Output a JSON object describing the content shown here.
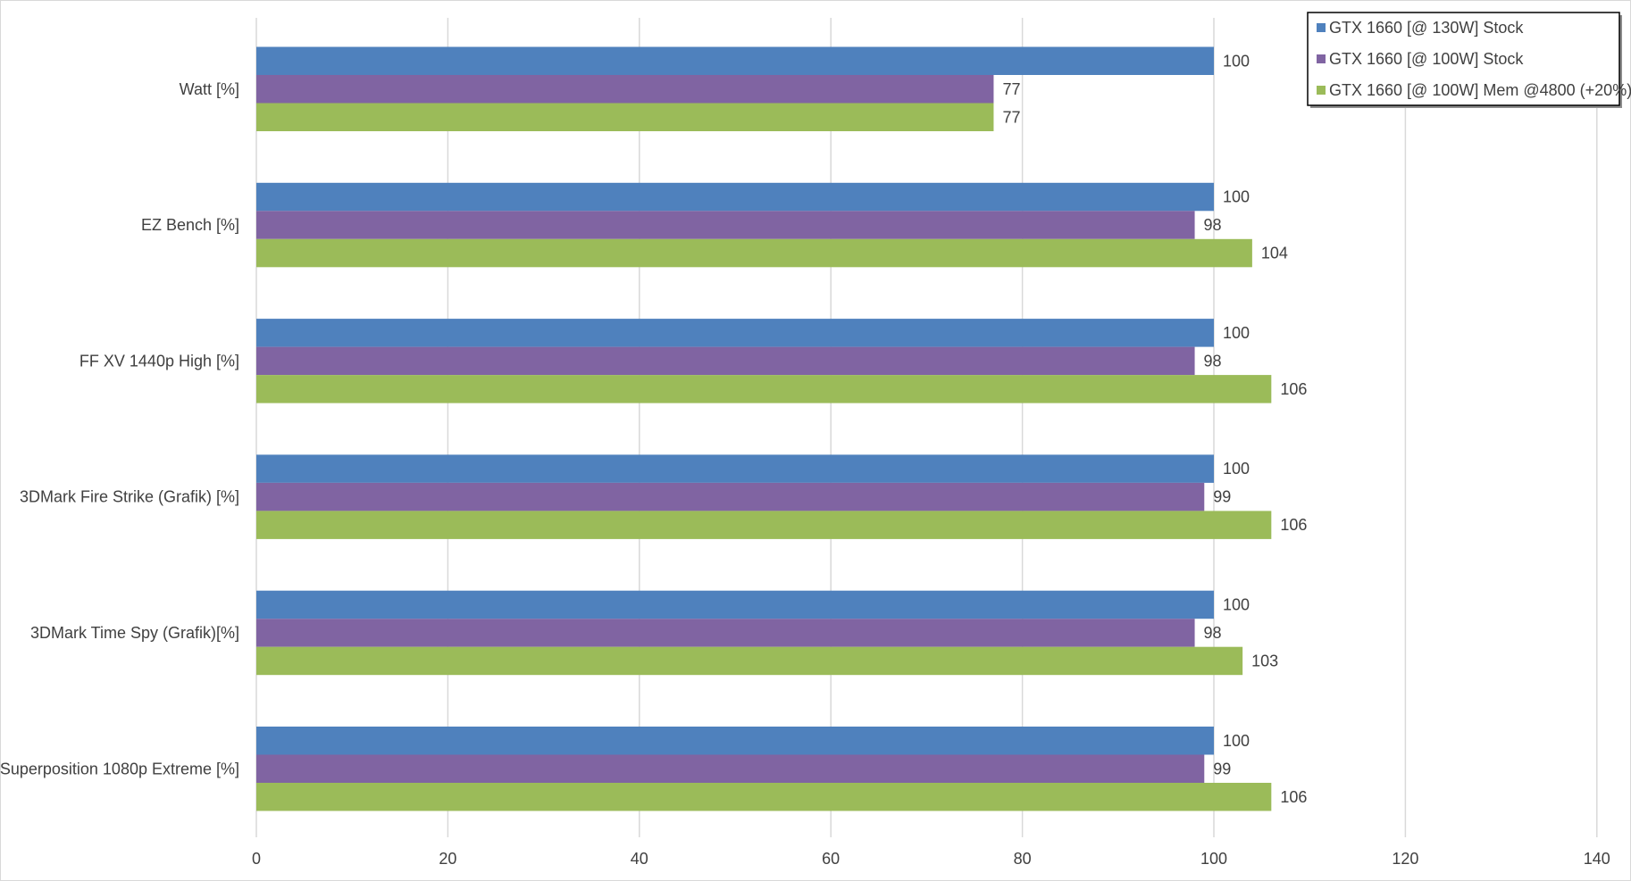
{
  "chart_data": {
    "type": "bar",
    "orientation": "horizontal",
    "categories": [
      "Watt [%]",
      "EZ Bench [%]",
      "FF XV 1440p High [%]",
      "3DMark Fire Strike (Grafik) [%]",
      "3DMark Time Spy (Grafik)[%]",
      "Superposition 1080p Extreme [%]"
    ],
    "series": [
      {
        "name": "GTX 1660 [@ 130W] Stock",
        "color": "#4f81bd",
        "values": [
          100,
          100,
          100,
          100,
          100,
          100
        ]
      },
      {
        "name": "GTX 1660 [@ 100W] Stock",
        "color": "#8064a2",
        "values": [
          77,
          98,
          98,
          99,
          98,
          99
        ]
      },
      {
        "name": "GTX 1660 [@ 100W] Mem @4800 (+20%)",
        "color": "#9bbb59",
        "values": [
          77,
          104,
          106,
          106,
          103,
          106
        ]
      }
    ],
    "xlim": [
      0,
      140
    ],
    "xticks": [
      0,
      20,
      40,
      60,
      80,
      100,
      120,
      140
    ],
    "grid": true,
    "legend_position": "top-right",
    "title": "",
    "xlabel": "",
    "ylabel": ""
  }
}
